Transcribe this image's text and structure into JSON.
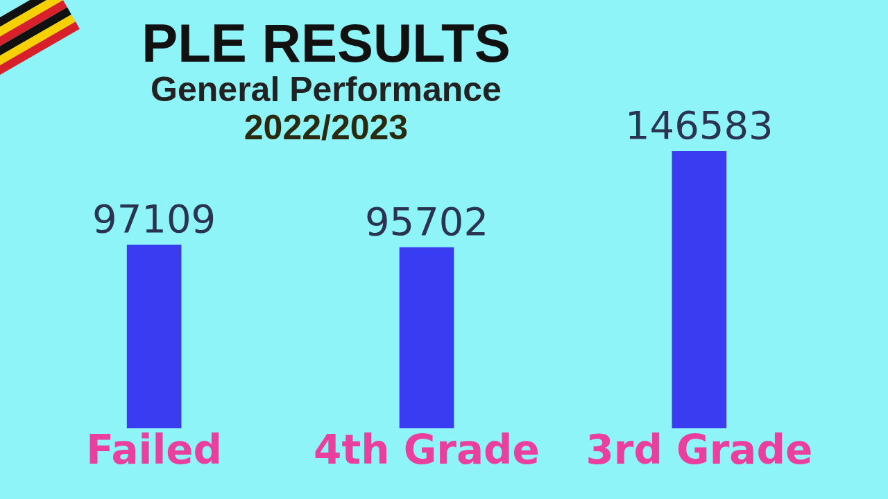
{
  "chart_data": {
    "type": "bar",
    "title": "PLE RESULTS",
    "subtitle": "General Performance",
    "annotations": [
      "2022/2023"
    ],
    "categories": [
      "Failed",
      "4th Grade",
      "3rd Grade"
    ],
    "values": [
      97109,
      95702,
      146583
    ],
    "color": "#3a3cf2",
    "data_labels": true,
    "tick_labels": "x"
  }
}
